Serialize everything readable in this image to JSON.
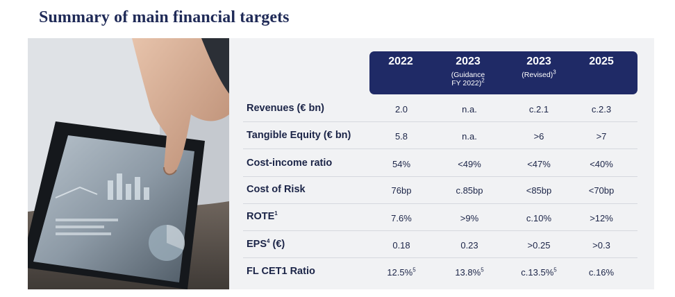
{
  "title": "Summary of main financial targets",
  "columns": [
    {
      "year": "2022",
      "sub": "",
      "sub2": "",
      "sup": ""
    },
    {
      "year": "2023",
      "sub": "(Guidance",
      "sub2": "FY 2022)",
      "sup": "2"
    },
    {
      "year": "2023",
      "sub": "(Revised)",
      "sub2": "",
      "sup": "3"
    },
    {
      "year": "2025",
      "sub": "",
      "sub2": "",
      "sup": ""
    }
  ],
  "rows": [
    {
      "label": "Revenues (€ bn)",
      "label_sup": "",
      "label_after": "",
      "values": [
        {
          "v": "2.0",
          "sup": ""
        },
        {
          "v": "n.a.",
          "sup": ""
        },
        {
          "v": "c.2.1",
          "sup": ""
        },
        {
          "v": "c.2.3",
          "sup": ""
        }
      ]
    },
    {
      "label": "Tangible Equity  (€ bn)",
      "label_sup": "",
      "label_after": "",
      "values": [
        {
          "v": "5.8",
          "sup": ""
        },
        {
          "v": "n.a.",
          "sup": ""
        },
        {
          "v": ">6",
          "sup": ""
        },
        {
          "v": ">7",
          "sup": ""
        }
      ]
    },
    {
      "label": "Cost-income ratio",
      "label_sup": "",
      "label_after": "",
      "values": [
        {
          "v": "54%",
          "sup": ""
        },
        {
          "v": "<49%",
          "sup": ""
        },
        {
          "v": "<47%",
          "sup": ""
        },
        {
          "v": "<40%",
          "sup": ""
        }
      ]
    },
    {
      "label": "Cost of Risk",
      "label_sup": "",
      "label_after": "",
      "values": [
        {
          "v": "76bp",
          "sup": ""
        },
        {
          "v": "c.85bp",
          "sup": ""
        },
        {
          "v": "<85bp",
          "sup": ""
        },
        {
          "v": "<70bp",
          "sup": ""
        }
      ]
    },
    {
      "label": "ROTE",
      "label_sup": "1",
      "label_after": "",
      "values": [
        {
          "v": "7.6%",
          "sup": ""
        },
        {
          "v": ">9%",
          "sup": ""
        },
        {
          "v": "c.10%",
          "sup": ""
        },
        {
          "v": ">12%",
          "sup": ""
        }
      ]
    },
    {
      "label": "EPS",
      "label_sup": "4",
      "label_after": " (€)",
      "values": [
        {
          "v": "0.18",
          "sup": ""
        },
        {
          "v": "0.23",
          "sup": ""
        },
        {
          "v": ">0.25",
          "sup": ""
        },
        {
          "v": ">0.3",
          "sup": ""
        }
      ]
    },
    {
      "label": "FL CET1 Ratio",
      "label_sup": "",
      "label_after": "",
      "values": [
        {
          "v": "12.5%",
          "sup": "5"
        },
        {
          "v": "13.8%",
          "sup": "5"
        },
        {
          "v": "c.13.5%",
          "sup": "5"
        },
        {
          "v": "c.16%",
          "sup": ""
        }
      ]
    }
  ]
}
